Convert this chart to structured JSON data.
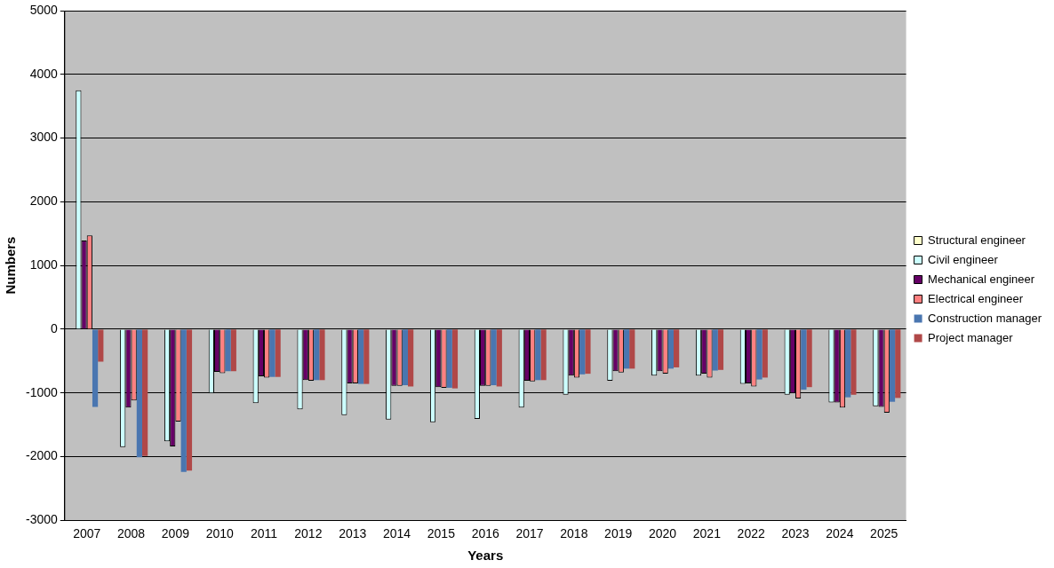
{
  "chart_data": {
    "type": "bar",
    "xlabel": "Years",
    "ylabel": "Numbers",
    "categories": [
      "2007",
      "2008",
      "2009",
      "2010",
      "2011",
      "2012",
      "2013",
      "2014",
      "2015",
      "2016",
      "2017",
      "2018",
      "2019",
      "2020",
      "2021",
      "2022",
      "2023",
      "2024",
      "2025"
    ],
    "series": [
      {
        "name": "Structural engineer",
        "color": "#ffffcc",
        "values": [
          0,
          0,
          0,
          0,
          0,
          0,
          0,
          0,
          0,
          0,
          0,
          0,
          0,
          0,
          0,
          0,
          0,
          0,
          0
        ]
      },
      {
        "name": "Civil engineer",
        "color": "#ccffff",
        "values": [
          3750,
          -1850,
          -1760,
          -1010,
          -1160,
          -1260,
          -1350,
          -1420,
          -1460,
          -1410,
          -1230,
          -1030,
          -810,
          -730,
          -730,
          -860,
          -1030,
          -1150,
          -1210
        ]
      },
      {
        "name": "Mechanical engineer",
        "color": "#660066",
        "values": [
          1390,
          -1230,
          -1840,
          -670,
          -740,
          -800,
          -850,
          -890,
          -910,
          -890,
          -810,
          -730,
          -660,
          -660,
          -700,
          -850,
          -1010,
          -1150,
          -1220
        ]
      },
      {
        "name": "Electrical engineer",
        "color": "#ff8080",
        "values": [
          1470,
          -1120,
          -1450,
          -690,
          -760,
          -810,
          -850,
          -890,
          -920,
          -890,
          -820,
          -760,
          -680,
          -700,
          -760,
          -900,
          -1090,
          -1230,
          -1310
        ]
      },
      {
        "name": "Construction manager",
        "color": "#4a76b0",
        "values": [
          -1220,
          -2010,
          -2240,
          -660,
          -750,
          -800,
          -860,
          -880,
          -920,
          -880,
          -800,
          -710,
          -620,
          -620,
          -650,
          -790,
          -950,
          -1070,
          -1140
        ]
      },
      {
        "name": "Project manager",
        "color": "#b04848",
        "values": [
          -510,
          -1990,
          -2220,
          -660,
          -750,
          -800,
          -860,
          -900,
          -930,
          -900,
          -800,
          -700,
          -620,
          -600,
          -640,
          -760,
          -910,
          -1030,
          -1080
        ]
      }
    ],
    "ylim": [
      -3000,
      5000
    ],
    "yticks": [
      -3000,
      -2000,
      -1000,
      0,
      1000,
      2000,
      3000,
      4000,
      5000
    ],
    "grid": "y",
    "legend": "right"
  }
}
